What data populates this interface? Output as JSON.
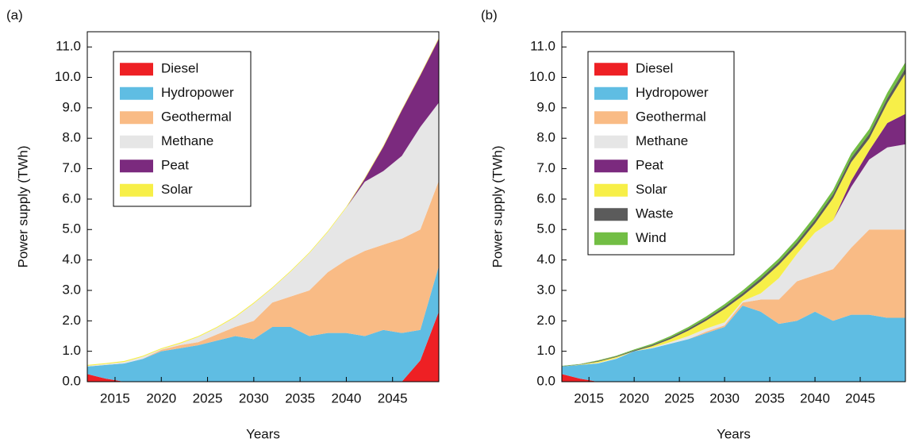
{
  "chart_data": [
    {
      "type": "stacked_area",
      "panel_label": "(a)",
      "x_label": "Years",
      "y_label": "Power supply (TWh)",
      "x": [
        2012,
        2014,
        2016,
        2018,
        2020,
        2022,
        2024,
        2026,
        2028,
        2030,
        2032,
        2034,
        2036,
        2038,
        2040,
        2042,
        2044,
        2046,
        2048,
        2050
      ],
      "xlim": [
        2012,
        2050
      ],
      "xticks": [
        2015,
        2020,
        2025,
        2030,
        2035,
        2040,
        2045
      ],
      "ylim": [
        0,
        11.5
      ],
      "yticks": [
        {
          "value": 0,
          "label": "0.0"
        },
        {
          "value": 1,
          "label": "1.0"
        },
        {
          "value": 2,
          "label": "2.0"
        },
        {
          "value": 3,
          "label": "3.0"
        },
        {
          "value": 4,
          "label": "4.0"
        },
        {
          "value": 5,
          "label": "5.0"
        },
        {
          "value": 6,
          "label": "6.0"
        },
        {
          "value": 7,
          "label": "7.0"
        },
        {
          "value": 8,
          "label": "8.0"
        },
        {
          "value": 9,
          "label": "9.0"
        },
        {
          "value": 10,
          "label": "10.0"
        },
        {
          "value": 11,
          "label": "11.0"
        }
      ],
      "legend": "upper left",
      "series": [
        {
          "name": "Diesel",
          "color": "#ee2024",
          "values": [
            0.25,
            0.1,
            0,
            0,
            0,
            0,
            0,
            0,
            0,
            0,
            0,
            0,
            0,
            0,
            0,
            0,
            0,
            0,
            0.7,
            2.3
          ]
        },
        {
          "name": "Hydropower",
          "color": "#5fbde3",
          "values": [
            0.25,
            0.45,
            0.6,
            0.75,
            1.0,
            1.1,
            1.2,
            1.35,
            1.5,
            1.4,
            1.8,
            1.8,
            1.5,
            1.6,
            1.6,
            1.5,
            1.7,
            1.6,
            1.0,
            1.5
          ]
        },
        {
          "name": "Geothermal",
          "color": "#f9bb85",
          "values": [
            0,
            0,
            0,
            0,
            0.05,
            0.1,
            0.1,
            0.2,
            0.3,
            0.6,
            0.8,
            1.0,
            1.5,
            2.0,
            2.4,
            2.8,
            2.8,
            3.1,
            3.3,
            2.8
          ]
        },
        {
          "name": "Methane",
          "color": "#e6e6e6",
          "values": [
            0.02,
            0.03,
            0.05,
            0.07,
            0.02,
            0.05,
            0.17,
            0.22,
            0.32,
            0.57,
            0.47,
            0.82,
            1.22,
            1.32,
            1.72,
            2.27,
            2.42,
            2.72,
            3.37,
            2.57
          ]
        },
        {
          "name": "Peat",
          "color": "#7b2a7e",
          "values": [
            0,
            0,
            0,
            0,
            0,
            0,
            0,
            0,
            0,
            0,
            0,
            0,
            0,
            0,
            0,
            0.1,
            0.8,
            1.5,
            1.7,
            2.1
          ]
        },
        {
          "name": "Solar",
          "color": "#f7ef48",
          "values": [
            0.03,
            0.03,
            0.03,
            0.03,
            0.03,
            0.03,
            0.03,
            0.03,
            0.03,
            0.03,
            0.03,
            0.03,
            0.03,
            0.03,
            0.03,
            0.03,
            0.03,
            0.03,
            0.03,
            0.03
          ]
        }
      ]
    },
    {
      "type": "stacked_area",
      "panel_label": "(b)",
      "x_label": "Years",
      "y_label": "Power supply (TWh)",
      "x": [
        2012,
        2014,
        2016,
        2018,
        2020,
        2022,
        2024,
        2026,
        2028,
        2030,
        2032,
        2034,
        2036,
        2038,
        2040,
        2042,
        2044,
        2046,
        2048,
        2050
      ],
      "xlim": [
        2012,
        2050
      ],
      "xticks": [
        2015,
        2020,
        2025,
        2030,
        2035,
        2040,
        2045
      ],
      "ylim": [
        0,
        11.5
      ],
      "yticks": [
        {
          "value": 0,
          "label": "0.0"
        },
        {
          "value": 1,
          "label": "1.0"
        },
        {
          "value": 2,
          "label": "2.0"
        },
        {
          "value": 3,
          "label": "3.0"
        },
        {
          "value": 4,
          "label": "4.0"
        },
        {
          "value": 5,
          "label": "5.0"
        },
        {
          "value": 6,
          "label": "6.0"
        },
        {
          "value": 7,
          "label": "7.0"
        },
        {
          "value": 8,
          "label": "8.0"
        },
        {
          "value": 9,
          "label": "9.0"
        },
        {
          "value": 10,
          "label": "10.0"
        },
        {
          "value": 11,
          "label": "11.0"
        }
      ],
      "legend": "upper left",
      "series": [
        {
          "name": "Diesel",
          "color": "#ee2024",
          "values": [
            0.25,
            0.1,
            0,
            0,
            0,
            0,
            0,
            0,
            0,
            0,
            0,
            0,
            0,
            0,
            0,
            0,
            0,
            0,
            0,
            0
          ]
        },
        {
          "name": "Hydropower",
          "color": "#5fbde3",
          "values": [
            0.25,
            0.45,
            0.6,
            0.75,
            1.0,
            1.1,
            1.25,
            1.4,
            1.6,
            1.8,
            2.5,
            2.3,
            1.9,
            2.0,
            2.3,
            2.0,
            2.2,
            2.2,
            2.1,
            2.1
          ]
        },
        {
          "name": "Geothermal",
          "color": "#f9bb85",
          "values": [
            0,
            0,
            0,
            0,
            0,
            0,
            0,
            0,
            0.05,
            0.05,
            0.1,
            0.4,
            0.8,
            1.3,
            1.2,
            1.7,
            2.2,
            2.8,
            2.9,
            2.9
          ]
        },
        {
          "name": "Methane",
          "color": "#e6e6e6",
          "values": [
            0,
            0,
            0.02,
            0.02,
            0,
            0.02,
            0.05,
            0.1,
            0.1,
            0.1,
            0.05,
            0.2,
            0.7,
            0.9,
            1.4,
            1.6,
            2.0,
            2.3,
            2.7,
            2.8
          ]
        },
        {
          "name": "Peat",
          "color": "#7b2a7e",
          "values": [
            0,
            0,
            0,
            0,
            0,
            0,
            0,
            0,
            0,
            0,
            0,
            0,
            0,
            0,
            0,
            0,
            0.2,
            0.3,
            0.8,
            1.0
          ]
        },
        {
          "name": "Solar",
          "color": "#f7ef48",
          "values": [
            0,
            0.01,
            0.04,
            0.04,
            0,
            0.05,
            0.1,
            0.18,
            0.26,
            0.44,
            0.17,
            0.4,
            0.44,
            0.27,
            0.3,
            0.73,
            0.61,
            0.39,
            0.66,
            1.33
          ]
        },
        {
          "name": "Waste",
          "color": "#5b5b5b",
          "values": [
            0.01,
            0.01,
            0.02,
            0.02,
            0.03,
            0.04,
            0.05,
            0.06,
            0.07,
            0.08,
            0.09,
            0.1,
            0.1,
            0.11,
            0.12,
            0.13,
            0.14,
            0.15,
            0.16,
            0.17
          ]
        },
        {
          "name": "Wind",
          "color": "#72be44",
          "values": [
            0.01,
            0.01,
            0.02,
            0.02,
            0.03,
            0.04,
            0.05,
            0.06,
            0.07,
            0.08,
            0.09,
            0.1,
            0.11,
            0.12,
            0.13,
            0.14,
            0.15,
            0.16,
            0.18,
            0.2
          ]
        }
      ]
    }
  ]
}
